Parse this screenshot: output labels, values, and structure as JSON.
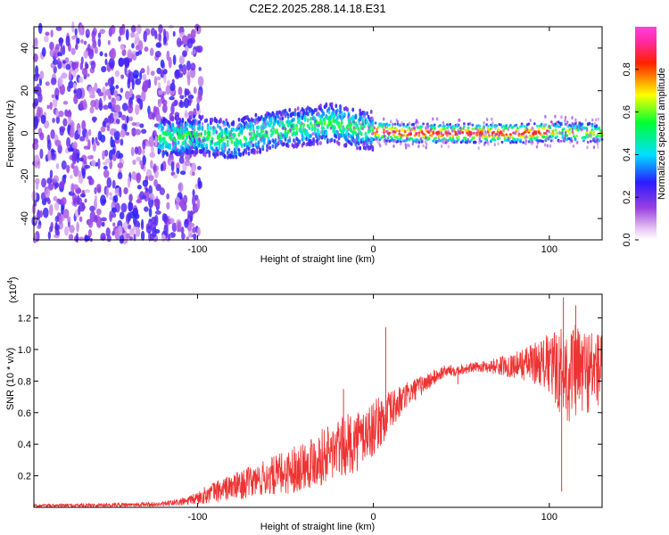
{
  "title": "C2E2.2025.288.14.18.E31",
  "chart_data": [
    {
      "type": "heatmap",
      "name": "spectrogram",
      "xlabel": "Height of straight line (km)",
      "ylabel": "Frequency (Hz)",
      "xlim": [
        -193,
        130
      ],
      "ylim": [
        -50,
        50
      ],
      "xticks": [
        -100,
        0,
        100
      ],
      "yticks": [
        -40,
        -20,
        0,
        20,
        40
      ],
      "colorbar": {
        "label": "Normalized spectral amplitude",
        "range": [
          0,
          1
        ],
        "ticks": [
          "0.0",
          "0.2",
          "0.4",
          "0.6",
          "0.8"
        ],
        "tick_values": [
          0.0,
          0.2,
          0.4,
          0.6,
          0.8
        ]
      },
      "signal_ridge": [
        {
          "x": -120,
          "y": -2
        },
        {
          "x": -100,
          "y": -1
        },
        {
          "x": -80,
          "y": -3
        },
        {
          "x": -60,
          "y": 1
        },
        {
          "x": -40,
          "y": 3
        },
        {
          "x": -25,
          "y": 5
        },
        {
          "x": -10,
          "y": 2
        },
        {
          "x": 0,
          "y": 1
        },
        {
          "x": 20,
          "y": 0
        },
        {
          "x": 60,
          "y": 0
        },
        {
          "x": 90,
          "y": 0
        },
        {
          "x": 100,
          "y": 1
        },
        {
          "x": 130,
          "y": 0
        }
      ]
    },
    {
      "type": "line",
      "name": "snr",
      "xlabel": "Height of straight line (km)",
      "ylabel": "SNR (10 * v/v)",
      "multiplier_label": "(x10",
      "multiplier_exponent": "4",
      "xlim": [
        -193,
        130
      ],
      "ylim": [
        0,
        1.35
      ],
      "xticks": [
        -100,
        0,
        100
      ],
      "yticks": [
        "0.2",
        "0.4",
        "0.6",
        "0.8",
        "1.0",
        "1.2"
      ],
      "ytick_values": [
        0.2,
        0.4,
        0.6,
        0.8,
        1.0,
        1.2
      ],
      "color": "#ee3333",
      "envelope": [
        {
          "x": -193,
          "mean": 0.01,
          "amp": 0.01
        },
        {
          "x": -120,
          "mean": 0.02,
          "amp": 0.015
        },
        {
          "x": -105,
          "mean": 0.04,
          "amp": 0.03
        },
        {
          "x": -90,
          "mean": 0.1,
          "amp": 0.07
        },
        {
          "x": -70,
          "mean": 0.16,
          "amp": 0.1
        },
        {
          "x": -50,
          "mean": 0.22,
          "amp": 0.14
        },
        {
          "x": -30,
          "mean": 0.32,
          "amp": 0.18
        },
        {
          "x": -10,
          "mean": 0.42,
          "amp": 0.2
        },
        {
          "x": 0,
          "mean": 0.5,
          "amp": 0.18
        },
        {
          "x": 20,
          "mean": 0.72,
          "amp": 0.08
        },
        {
          "x": 40,
          "mean": 0.86,
          "amp": 0.04
        },
        {
          "x": 60,
          "mean": 0.89,
          "amp": 0.03
        },
        {
          "x": 80,
          "mean": 0.9,
          "amp": 0.08
        },
        {
          "x": 95,
          "mean": 0.92,
          "amp": 0.15
        },
        {
          "x": 110,
          "mean": 0.85,
          "amp": 0.32
        },
        {
          "x": 130,
          "mean": 0.88,
          "amp": 0.25
        }
      ],
      "spikes": [
        {
          "x": 7,
          "y": 1.14
        },
        {
          "x": 6,
          "y": 0.42
        },
        {
          "x": 108,
          "y": 1.33
        },
        {
          "x": 107,
          "y": 0.1
        },
        {
          "x": 115,
          "y": 1.28
        },
        {
          "x": -17,
          "y": 0.75
        },
        {
          "x": 48,
          "y": 0.78
        }
      ]
    }
  ]
}
